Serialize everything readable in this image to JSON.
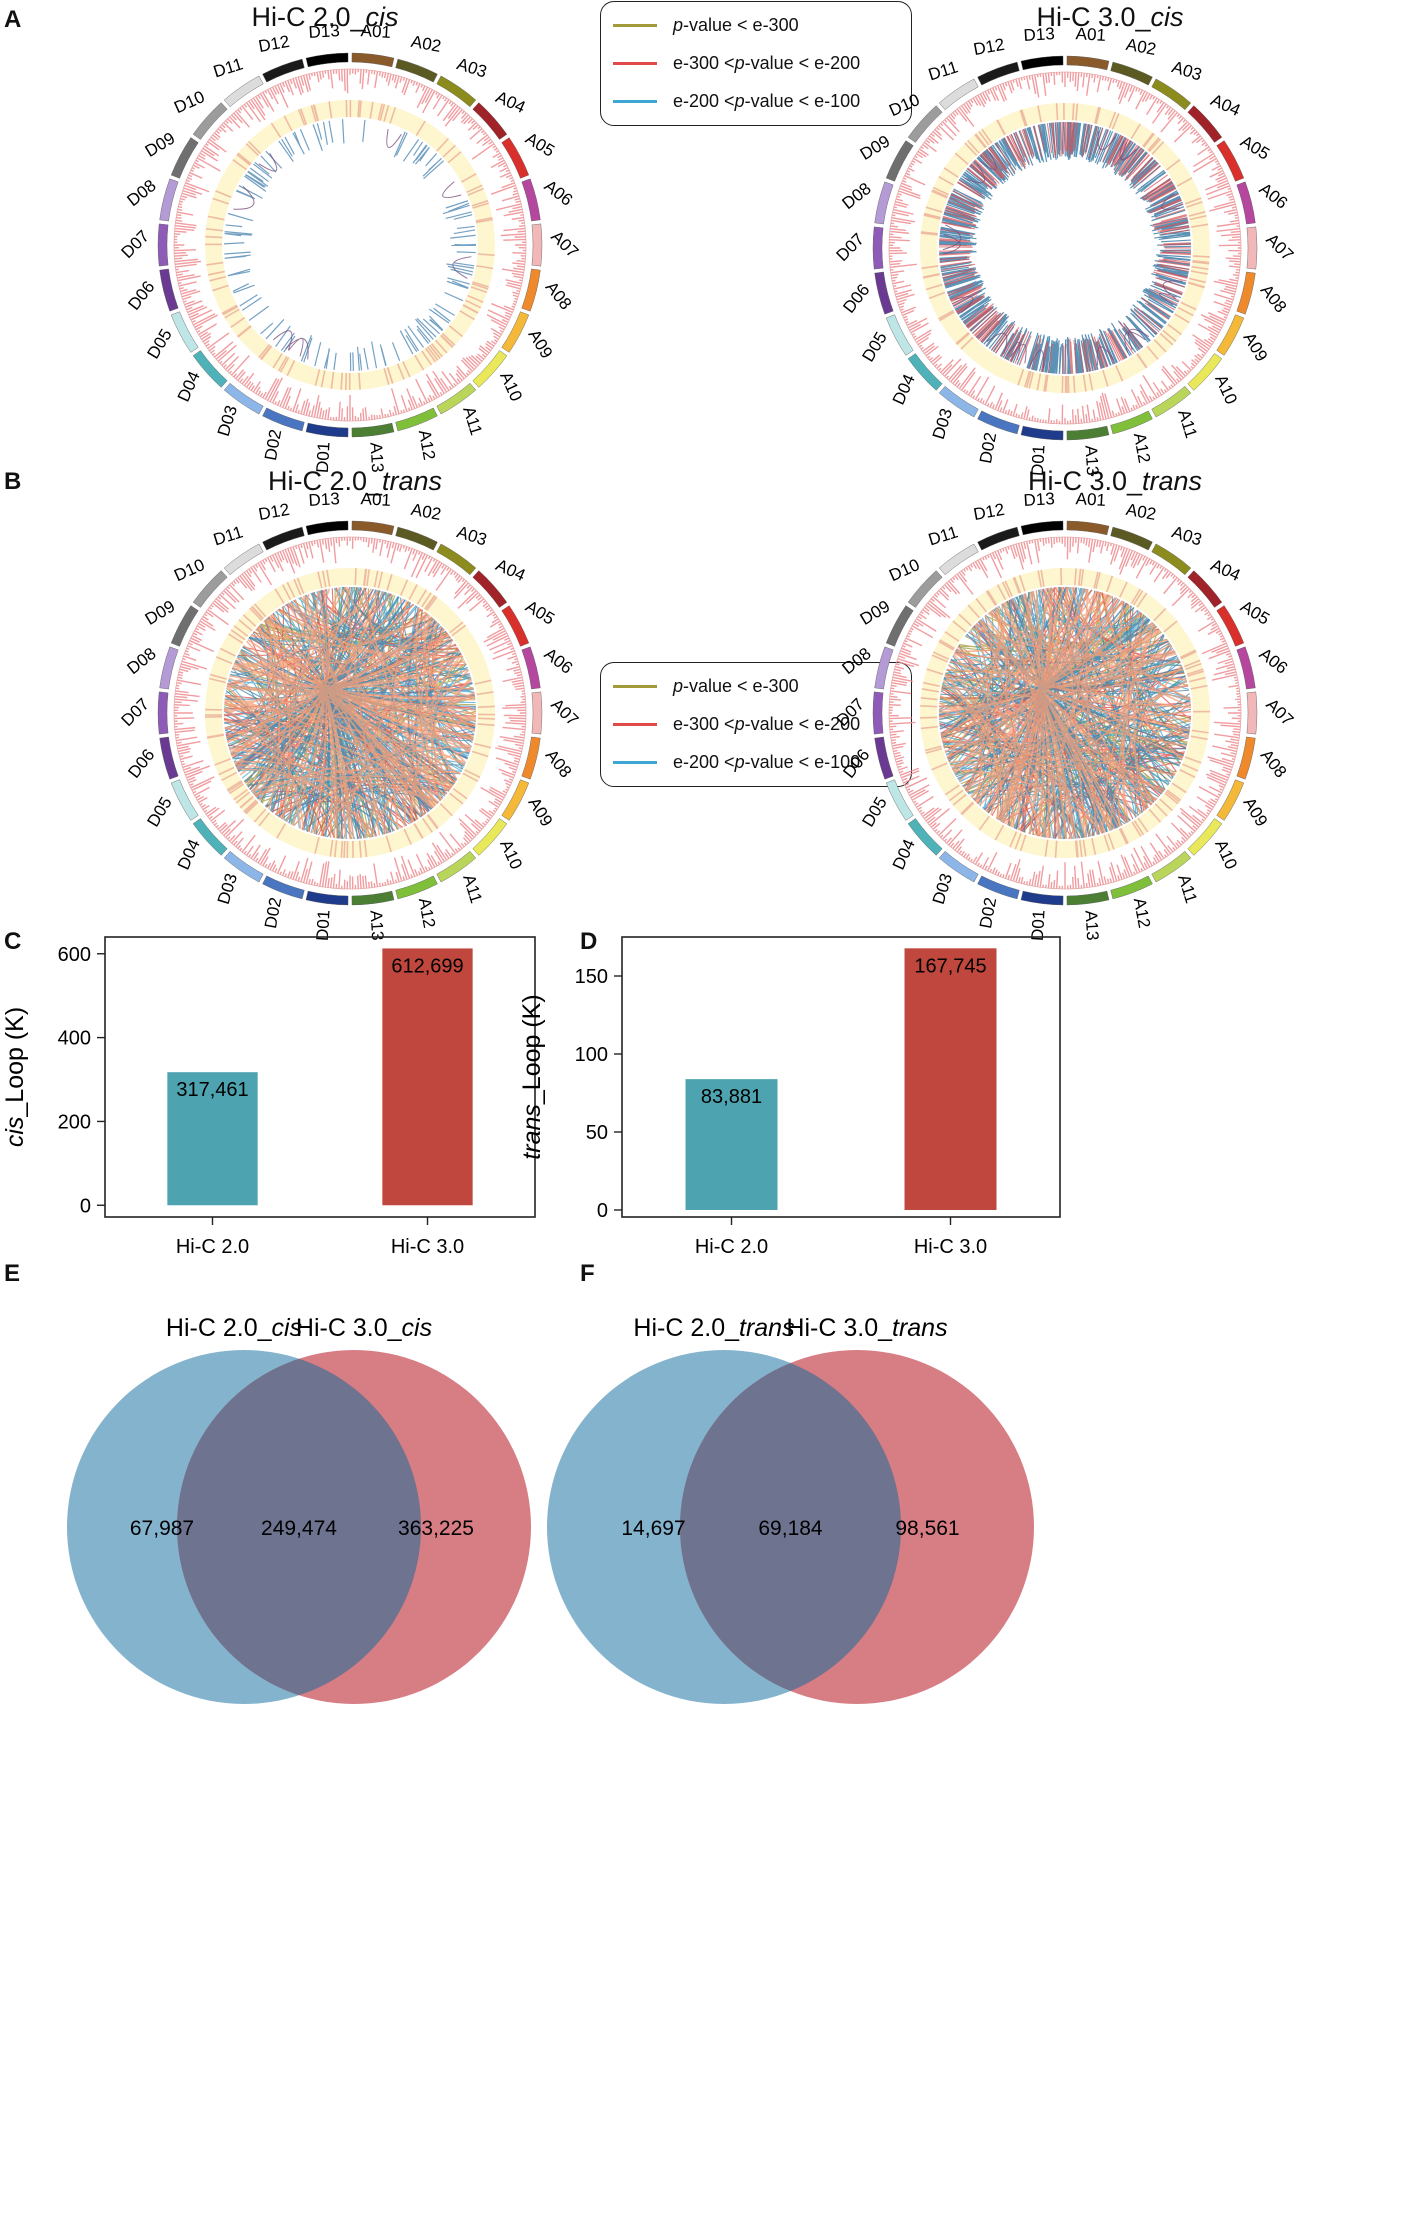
{
  "panels": {
    "A": {
      "letter": "A",
      "left_title_prefix": "Hi-C 2.0_",
      "left_title_italic": "cis",
      "right_title_prefix": "Hi-C 3.0_",
      "right_title_italic": "cis"
    },
    "B": {
      "letter": "B",
      "left_title_prefix": "Hi-C 2.0_",
      "left_title_italic": "trans",
      "right_title_prefix": "Hi-C 3.0_",
      "right_title_italic": "trans"
    },
    "C": {
      "letter": "C"
    },
    "D": {
      "letter": "D"
    },
    "E": {
      "letter": "E"
    },
    "F": {
      "letter": "F"
    }
  },
  "legend": [
    {
      "prefix": "",
      "italic": "p",
      "rest": "-value < e-300",
      "color": "#a39a3b"
    },
    {
      "prefix": "e-300 < ",
      "italic": "p",
      "rest": "-value < e-200",
      "color": "#e04a48"
    },
    {
      "prefix": "e-200 < ",
      "italic": "p",
      "rest": "-value < e-100",
      "color": "#3fa7d6"
    }
  ],
  "chromosomes": [
    {
      "name": "A01",
      "color": "#8b5a2b"
    },
    {
      "name": "A02",
      "color": "#5b5a23"
    },
    {
      "name": "A03",
      "color": "#8c8c1e"
    },
    {
      "name": "A04",
      "color": "#a0232a"
    },
    {
      "name": "A05",
      "color": "#d9302c"
    },
    {
      "name": "A06",
      "color": "#b5489e"
    },
    {
      "name": "A07",
      "color": "#f2b8b8"
    },
    {
      "name": "A08",
      "color": "#ef8a2c"
    },
    {
      "name": "A09",
      "color": "#f5b93a"
    },
    {
      "name": "A10",
      "color": "#e8e85a"
    },
    {
      "name": "A11",
      "color": "#b9d65b"
    },
    {
      "name": "A12",
      "color": "#7fbf3a"
    },
    {
      "name": "A13",
      "color": "#4c7f33"
    },
    {
      "name": "D01",
      "color": "#1f3b8c"
    },
    {
      "name": "D02",
      "color": "#4a75c0"
    },
    {
      "name": "D03",
      "color": "#8db6e8"
    },
    {
      "name": "D04",
      "color": "#4fb2b8"
    },
    {
      "name": "D05",
      "color": "#bfe6e6"
    },
    {
      "name": "D06",
      "color": "#6a3a93"
    },
    {
      "name": "D07",
      "color": "#8e5cb6"
    },
    {
      "name": "D08",
      "color": "#b49bd5"
    },
    {
      "name": "D09",
      "color": "#6f6f6f"
    },
    {
      "name": "D10",
      "color": "#9c9c9c"
    },
    {
      "name": "D11",
      "color": "#dcdcdc"
    },
    {
      "name": "D12",
      "color": "#1a1a1a"
    },
    {
      "name": "D13",
      "color": "#000000"
    }
  ],
  "chart_data": [
    {
      "type": "bar",
      "ylabel_italic": "cis",
      "ylabel_rest": "_Loop (K)",
      "categories": [
        "Hi-C 2.0",
        "Hi-C 3.0"
      ],
      "values": [
        317.461,
        612.699
      ],
      "value_labels": [
        "317,461",
        "612,699"
      ],
      "colors": [
        "#4da3b0",
        "#c0473d"
      ],
      "ylim": [
        -28,
        640
      ],
      "yticks": [
        0,
        200,
        400,
        600
      ],
      "ytick_labels": [
        "0",
        "200",
        "400",
        "600"
      ]
    },
    {
      "type": "bar",
      "ylabel_italic": "trans",
      "ylabel_rest": "_Loop (K)",
      "categories": [
        "Hi-C 2.0",
        "Hi-C 3.0"
      ],
      "values": [
        83.881,
        167.745
      ],
      "value_labels": [
        "83,881",
        "167,745"
      ],
      "colors": [
        "#4da3b0",
        "#c0473d"
      ],
      "ylim": [
        -4.5,
        175
      ],
      "yticks": [
        0,
        50,
        100,
        150
      ],
      "ytick_labels": [
        "0",
        "50",
        "100",
        "150"
      ]
    },
    {
      "type": "venn",
      "set_names": [
        {
          "prefix": "Hi-C 2.0_",
          "italic": "cis"
        },
        {
          "prefix": "Hi-C 3.0_",
          "italic": "cis"
        }
      ],
      "only_a": "67,987",
      "overlap": "249,474",
      "only_b": "363,225",
      "colors": [
        "#6fa6c4",
        "#d0666e"
      ]
    },
    {
      "type": "venn",
      "set_names": [
        {
          "prefix": "Hi-C 2.0_",
          "italic": "trans"
        },
        {
          "prefix": "Hi-C 3.0_",
          "italic": "trans"
        }
      ],
      "only_a": "14,697",
      "overlap": "69,184",
      "only_b": "98,561",
      "colors": [
        "#6fa6c4",
        "#d0666e"
      ]
    }
  ]
}
